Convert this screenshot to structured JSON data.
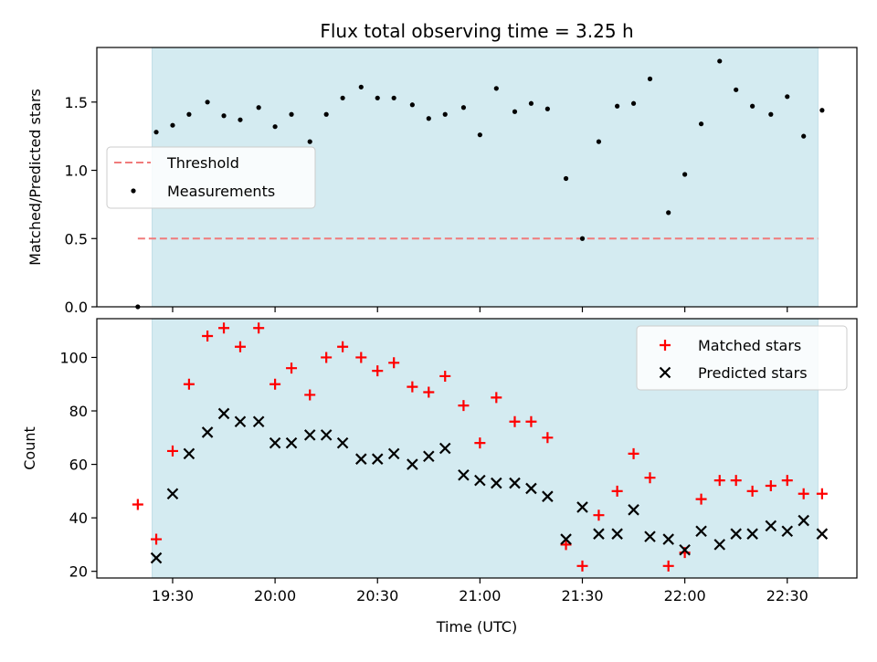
{
  "chart_data": [
    {
      "type": "scatter",
      "title": "Flux total observing time = 3.25 h",
      "xlabel": "",
      "ylabel": "Matched/Predicted stars",
      "x_axis": "time (hours UTC, decimal)",
      "xlim": [
        19.13,
        22.84
      ],
      "ylim": [
        0.0,
        1.9
      ],
      "yticks": [
        0.0,
        0.5,
        1.0,
        1.5
      ],
      "yticklabels": [
        "0.0",
        "0.5",
        "1.0",
        "1.5"
      ],
      "shaded_span": [
        19.4,
        22.65
      ],
      "threshold": {
        "name": "Threshold",
        "y": 0.5,
        "x": [
          19.33,
          22.65
        ],
        "color": "#f07b7b"
      },
      "legend_position": "center-left",
      "series": [
        {
          "name": "Measurements",
          "marker": "dot",
          "color": "#000000",
          "points": [
            [
              19.33,
              0.0
            ],
            [
              19.42,
              1.28
            ],
            [
              19.5,
              1.33
            ],
            [
              19.58,
              1.41
            ],
            [
              19.67,
              1.5
            ],
            [
              19.75,
              1.4
            ],
            [
              19.83,
              1.37
            ],
            [
              19.92,
              1.46
            ],
            [
              20.0,
              1.32
            ],
            [
              20.08,
              1.41
            ],
            [
              20.17,
              1.21
            ],
            [
              20.25,
              1.41
            ],
            [
              20.33,
              1.53
            ],
            [
              20.42,
              1.61
            ],
            [
              20.5,
              1.53
            ],
            [
              20.58,
              1.53
            ],
            [
              20.67,
              1.48
            ],
            [
              20.75,
              1.38
            ],
            [
              20.83,
              1.41
            ],
            [
              20.92,
              1.46
            ],
            [
              21.0,
              1.26
            ],
            [
              21.08,
              1.6
            ],
            [
              21.17,
              1.43
            ],
            [
              21.25,
              1.49
            ],
            [
              21.33,
              1.45
            ],
            [
              21.42,
              0.94
            ],
            [
              21.5,
              0.5
            ],
            [
              21.58,
              1.21
            ],
            [
              21.67,
              1.47
            ],
            [
              21.75,
              1.49
            ],
            [
              21.83,
              1.67
            ],
            [
              21.92,
              0.69
            ],
            [
              22.0,
              0.97
            ],
            [
              22.08,
              1.34
            ],
            [
              22.17,
              1.8
            ],
            [
              22.25,
              1.59
            ],
            [
              22.33,
              1.47
            ],
            [
              22.42,
              1.41
            ],
            [
              22.5,
              1.54
            ],
            [
              22.58,
              1.25
            ],
            [
              22.67,
              1.44
            ]
          ]
        }
      ]
    },
    {
      "type": "scatter",
      "title": "",
      "xlabel": "Time (UTC)",
      "ylabel": "Count",
      "x_axis": "time (hours UTC, decimal)",
      "xlim": [
        19.13,
        22.84
      ],
      "ylim": [
        17.5,
        114.5
      ],
      "xticks": [
        19.5,
        20.0,
        20.5,
        21.0,
        21.5,
        22.0,
        22.5
      ],
      "xticklabels": [
        "19:30",
        "20:00",
        "20:30",
        "21:00",
        "21:30",
        "22:00",
        "22:30"
      ],
      "yticks": [
        20,
        40,
        60,
        80,
        100
      ],
      "yticklabels": [
        "20",
        "40",
        "60",
        "80",
        "100"
      ],
      "shaded_span": [
        19.4,
        22.65
      ],
      "legend_position": "top-right",
      "series": [
        {
          "name": "Matched stars",
          "marker": "plus",
          "color": "#ff0000",
          "points": [
            [
              19.33,
              45
            ],
            [
              19.42,
              32
            ],
            [
              19.5,
              65
            ],
            [
              19.58,
              90
            ],
            [
              19.67,
              108
            ],
            [
              19.75,
              111
            ],
            [
              19.83,
              104
            ],
            [
              19.92,
              111
            ],
            [
              20.0,
              90
            ],
            [
              20.08,
              96
            ],
            [
              20.17,
              86
            ],
            [
              20.25,
              100
            ],
            [
              20.33,
              104
            ],
            [
              20.42,
              100
            ],
            [
              20.5,
              95
            ],
            [
              20.58,
              98
            ],
            [
              20.67,
              89
            ],
            [
              20.75,
              87
            ],
            [
              20.83,
              93
            ],
            [
              20.92,
              82
            ],
            [
              21.0,
              68
            ],
            [
              21.08,
              85
            ],
            [
              21.17,
              76
            ],
            [
              21.25,
              76
            ],
            [
              21.33,
              70
            ],
            [
              21.42,
              30
            ],
            [
              21.5,
              22
            ],
            [
              21.58,
              41
            ],
            [
              21.67,
              50
            ],
            [
              21.75,
              64
            ],
            [
              21.83,
              55
            ],
            [
              21.92,
              22
            ],
            [
              22.0,
              27
            ],
            [
              22.08,
              47
            ],
            [
              22.17,
              54
            ],
            [
              22.25,
              54
            ],
            [
              22.33,
              50
            ],
            [
              22.42,
              52
            ],
            [
              22.5,
              54
            ],
            [
              22.58,
              49
            ],
            [
              22.67,
              49
            ]
          ]
        },
        {
          "name": "Predicted stars",
          "marker": "x",
          "color": "#000000",
          "points": [
            [
              19.42,
              25
            ],
            [
              19.5,
              49
            ],
            [
              19.58,
              64
            ],
            [
              19.67,
              72
            ],
            [
              19.75,
              79
            ],
            [
              19.83,
              76
            ],
            [
              19.92,
              76
            ],
            [
              20.0,
              68
            ],
            [
              20.08,
              68
            ],
            [
              20.17,
              71
            ],
            [
              20.25,
              71
            ],
            [
              20.33,
              68
            ],
            [
              20.42,
              62
            ],
            [
              20.5,
              62
            ],
            [
              20.58,
              64
            ],
            [
              20.67,
              60
            ],
            [
              20.75,
              63
            ],
            [
              20.83,
              66
            ],
            [
              20.92,
              56
            ],
            [
              21.0,
              54
            ],
            [
              21.08,
              53
            ],
            [
              21.17,
              53
            ],
            [
              21.25,
              51
            ],
            [
              21.33,
              48
            ],
            [
              21.42,
              32
            ],
            [
              21.5,
              44
            ],
            [
              21.58,
              34
            ],
            [
              21.67,
              34
            ],
            [
              21.75,
              43
            ],
            [
              21.83,
              33
            ],
            [
              21.92,
              32
            ],
            [
              22.0,
              28
            ],
            [
              22.08,
              35
            ],
            [
              22.17,
              30
            ],
            [
              22.25,
              34
            ],
            [
              22.33,
              34
            ],
            [
              22.42,
              37
            ],
            [
              22.5,
              35
            ],
            [
              22.58,
              39
            ],
            [
              22.67,
              34
            ]
          ]
        }
      ]
    }
  ],
  "colors": {
    "shade": "#d4ebf1",
    "threshold": "#f07b7b",
    "matched": "#ff0000",
    "predicted": "#000000",
    "measurement": "#000000"
  }
}
